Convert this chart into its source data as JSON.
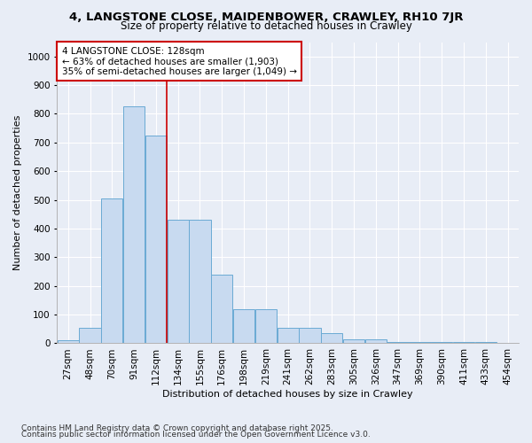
{
  "title": "4, LANGSTONE CLOSE, MAIDENBOWER, CRAWLEY, RH10 7JR",
  "subtitle": "Size of property relative to detached houses in Crawley",
  "xlabel": "Distribution of detached houses by size in Crawley",
  "ylabel": "Number of detached properties",
  "categories": [
    "27sqm",
    "48sqm",
    "70sqm",
    "91sqm",
    "112sqm",
    "134sqm",
    "155sqm",
    "176sqm",
    "198sqm",
    "219sqm",
    "241sqm",
    "262sqm",
    "283sqm",
    "305sqm",
    "326sqm",
    "347sqm",
    "369sqm",
    "390sqm",
    "411sqm",
    "433sqm",
    "454sqm"
  ],
  "values": [
    10,
    55,
    505,
    825,
    725,
    430,
    430,
    240,
    118,
    118,
    55,
    55,
    35,
    13,
    13,
    5,
    5,
    3,
    3,
    3,
    1
  ],
  "bar_color": "#c8daf0",
  "bar_edge_color": "#6aaad4",
  "vline_color": "#cc0000",
  "vline_x_idx": 4.5,
  "annotation_text": "4 LANGSTONE CLOSE: 128sqm\n← 63% of detached houses are smaller (1,903)\n35% of semi-detached houses are larger (1,049) →",
  "annotation_box_color": "white",
  "annotation_edge_color": "#cc0000",
  "ylim": [
    0,
    1050
  ],
  "yticks": [
    0,
    100,
    200,
    300,
    400,
    500,
    600,
    700,
    800,
    900,
    1000
  ],
  "background_color": "#e8edf6",
  "grid_color": "white",
  "footer1": "Contains HM Land Registry data © Crown copyright and database right 2025.",
  "footer2": "Contains public sector information licensed under the Open Government Licence v3.0.",
  "title_fontsize": 9.5,
  "subtitle_fontsize": 8.5,
  "annotation_fontsize": 7.5,
  "axis_label_fontsize": 8.0,
  "tick_fontsize": 7.5,
  "footer_fontsize": 6.5
}
